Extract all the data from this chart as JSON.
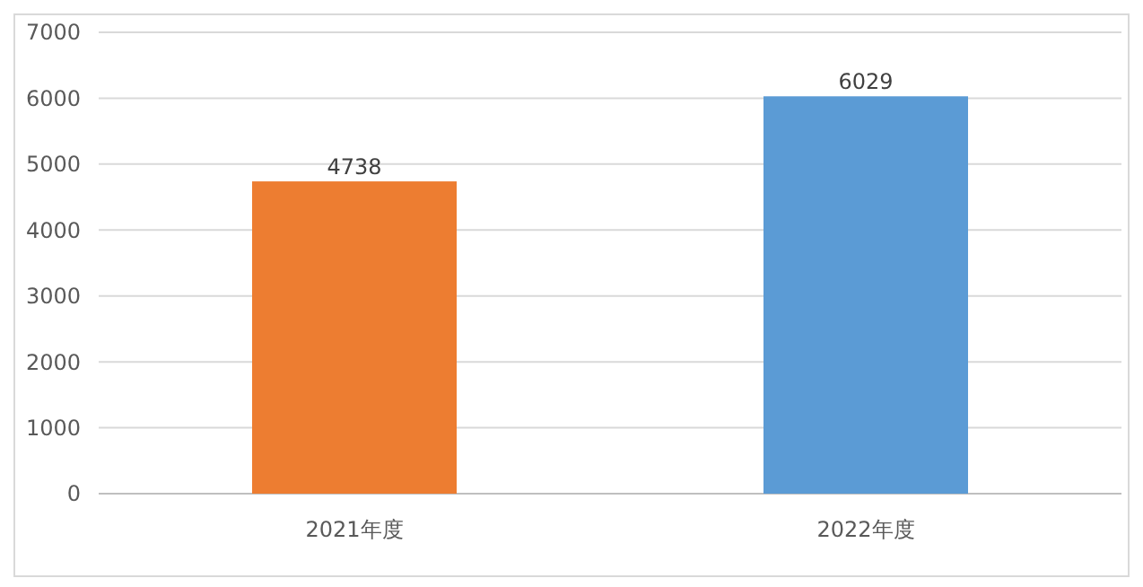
{
  "chart_data": {
    "type": "bar",
    "categories": [
      "2021年度",
      "2022年度"
    ],
    "values": [
      4738,
      6029
    ],
    "colors": [
      "#ed7d31",
      "#5b9bd5"
    ],
    "ylim": [
      0,
      7000
    ],
    "yticks": [
      0,
      1000,
      2000,
      3000,
      4000,
      5000,
      6000,
      7000
    ],
    "grid": "y",
    "data_labels": true
  }
}
